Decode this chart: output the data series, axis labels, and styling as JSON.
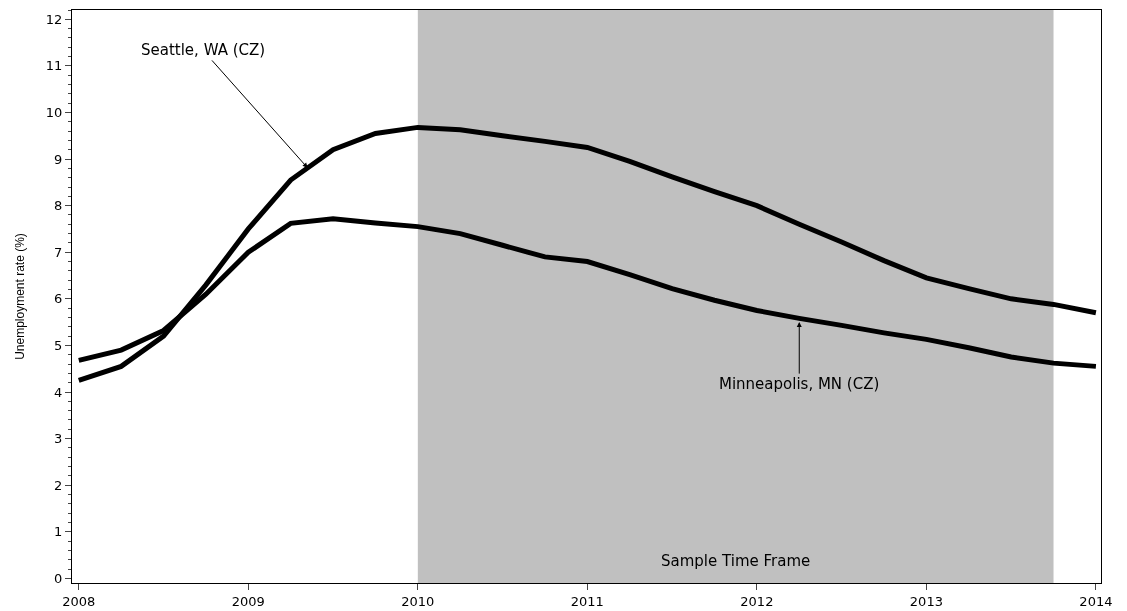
{
  "chart_data": {
    "type": "line",
    "ylabel": "Unemployment rate (%)",
    "x": [
      2008,
      2008.25,
      2008.5,
      2008.75,
      2009,
      2009.25,
      2009.5,
      2009.75,
      2010,
      2010.25,
      2010.5,
      2010.75,
      2011,
      2011.25,
      2011.5,
      2011.75,
      2012,
      2012.25,
      2012.5,
      2012.75,
      2013,
      2013.25,
      2013.5,
      2013.75,
      2014
    ],
    "series": [
      {
        "color": "#000000",
        "values": [
          4.25,
          4.55,
          5.2,
          6.3,
          7.5,
          8.55,
          9.2,
          9.55,
          9.68,
          9.63,
          9.5,
          9.38,
          9.25,
          8.95,
          8.62,
          8.3,
          8.0,
          7.6,
          7.22,
          6.82,
          6.45,
          6.22,
          6.0,
          5.88,
          5.7
        ]
      },
      {
        "color": "#000000",
        "values": [
          4.68,
          4.9,
          5.32,
          6.1,
          7.0,
          7.62,
          7.72,
          7.63,
          7.55,
          7.4,
          7.15,
          6.9,
          6.8,
          6.52,
          6.22,
          5.97,
          5.75,
          5.58,
          5.43,
          5.27,
          5.13,
          4.95,
          4.75,
          4.62,
          4.55
        ]
      }
    ],
    "annotations": [
      {
        "text": "Seattle, WA (CZ)",
        "x": 2009.35,
        "y": 8.81
      },
      {
        "text": "Minneapolis, MN (CZ)",
        "x": 2012.25,
        "y": 5.5
      }
    ],
    "bands": [
      {
        "axis": "x",
        "from": 2010,
        "to": 2013.75,
        "label": "Sample Time Frame",
        "color": "#c0c0c0"
      }
    ],
    "xlim": [
      2007.96,
      2014.03
    ],
    "xticks": [
      2008,
      2009,
      2010,
      2011,
      2012,
      2013,
      2014
    ],
    "ylim": [
      -0.1,
      12.2
    ],
    "yticks": [
      0,
      1,
      2,
      3,
      4,
      5,
      6,
      7,
      8,
      9,
      10,
      11,
      12
    ],
    "grid": false,
    "marker": "none",
    "line_style": "solid"
  }
}
